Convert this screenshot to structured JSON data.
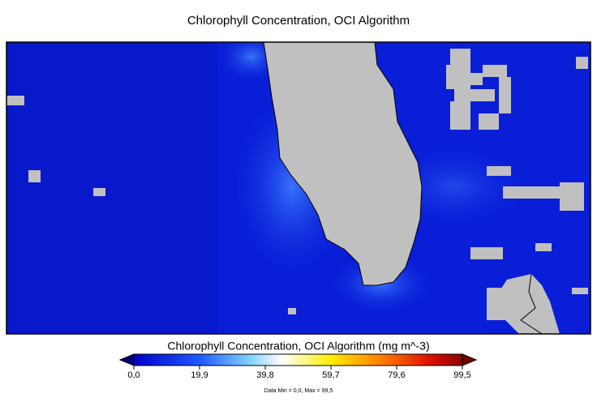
{
  "title": "Chlorophyll Concentration, OCI Algorithm",
  "colorbar": {
    "label": "Chlorophyll Concentration, OCI Algorithm (mg m^-3)",
    "range": [
      0,
      99.5
    ],
    "ticks": [
      {
        "value": 0,
        "label": "0,0"
      },
      {
        "value": 19.9,
        "label": "19,9"
      },
      {
        "value": 39.8,
        "label": "39,8"
      },
      {
        "value": 59.7,
        "label": "59,7"
      },
      {
        "value": 79.6,
        "label": "79,6"
      },
      {
        "value": 99.5,
        "label": "99,5"
      }
    ]
  },
  "data_range_note": "Data Min = 0,0, Max = 99,5"
}
